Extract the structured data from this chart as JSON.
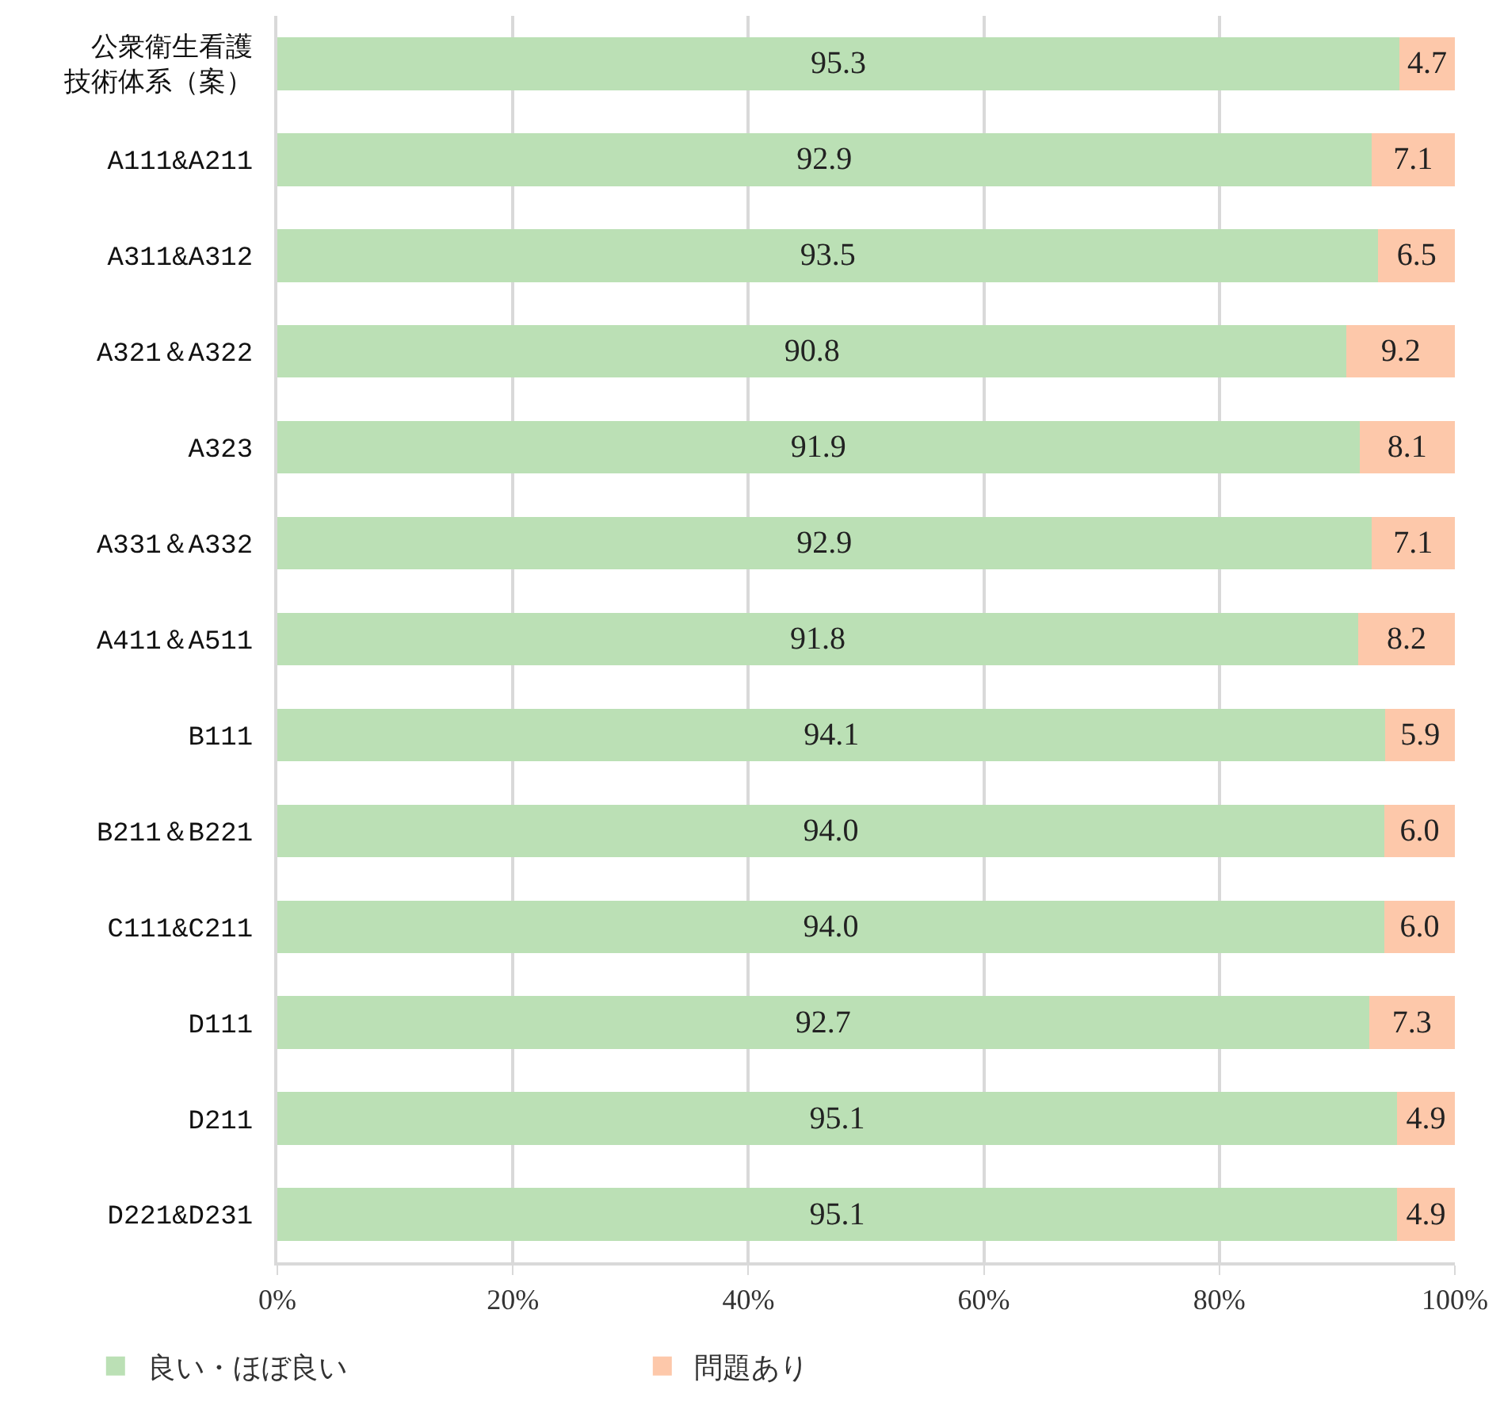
{
  "chart_data": {
    "type": "bar",
    "orientation": "horizontal",
    "stacked": true,
    "categories": [
      "公衆衛生看護技術体系（案）",
      "A111&A211",
      "A311&A312",
      "A321＆A322",
      "A323",
      "A331＆A332",
      "A411＆A511",
      "B111",
      "B211＆B221",
      "C111&C211",
      "D111",
      "D211",
      "D221&D231"
    ],
    "series": [
      {
        "name": "良い・ほぼ良い",
        "color": "#bbe0b5",
        "values": [
          95.3,
          92.9,
          93.5,
          90.8,
          91.9,
          92.9,
          91.8,
          94.1,
          94.0,
          94.0,
          92.7,
          95.1,
          95.1
        ],
        "value_labels": [
          "95.3",
          "92.9",
          "93.5",
          "90.8",
          "91.9",
          "92.9",
          "91.8",
          "94.1",
          "94.0",
          "94.0",
          "92.7",
          "95.1",
          "95.1"
        ]
      },
      {
        "name": "問題あり",
        "color": "#fdc8aa",
        "values": [
          4.7,
          7.1,
          6.5,
          9.2,
          8.1,
          7.1,
          8.2,
          5.9,
          6.0,
          6.0,
          7.3,
          4.9,
          4.9
        ],
        "value_labels": [
          "4.7",
          "7.1",
          "6.5",
          "9.2",
          "8.1",
          "7.1",
          "8.2",
          "5.9",
          "6.0",
          "6.0",
          "7.3",
          "4.9",
          "4.9"
        ]
      }
    ],
    "xlim": [
      0,
      100
    ],
    "xticks": [
      {
        "value": 0,
        "label": "0%"
      },
      {
        "value": 20,
        "label": "20%"
      },
      {
        "value": 40,
        "label": "40%"
      },
      {
        "value": 60,
        "label": "60%"
      },
      {
        "value": 80,
        "label": "80%"
      },
      {
        "value": 100,
        "label": "100%"
      }
    ],
    "grid": "x",
    "legend": "bottom"
  }
}
